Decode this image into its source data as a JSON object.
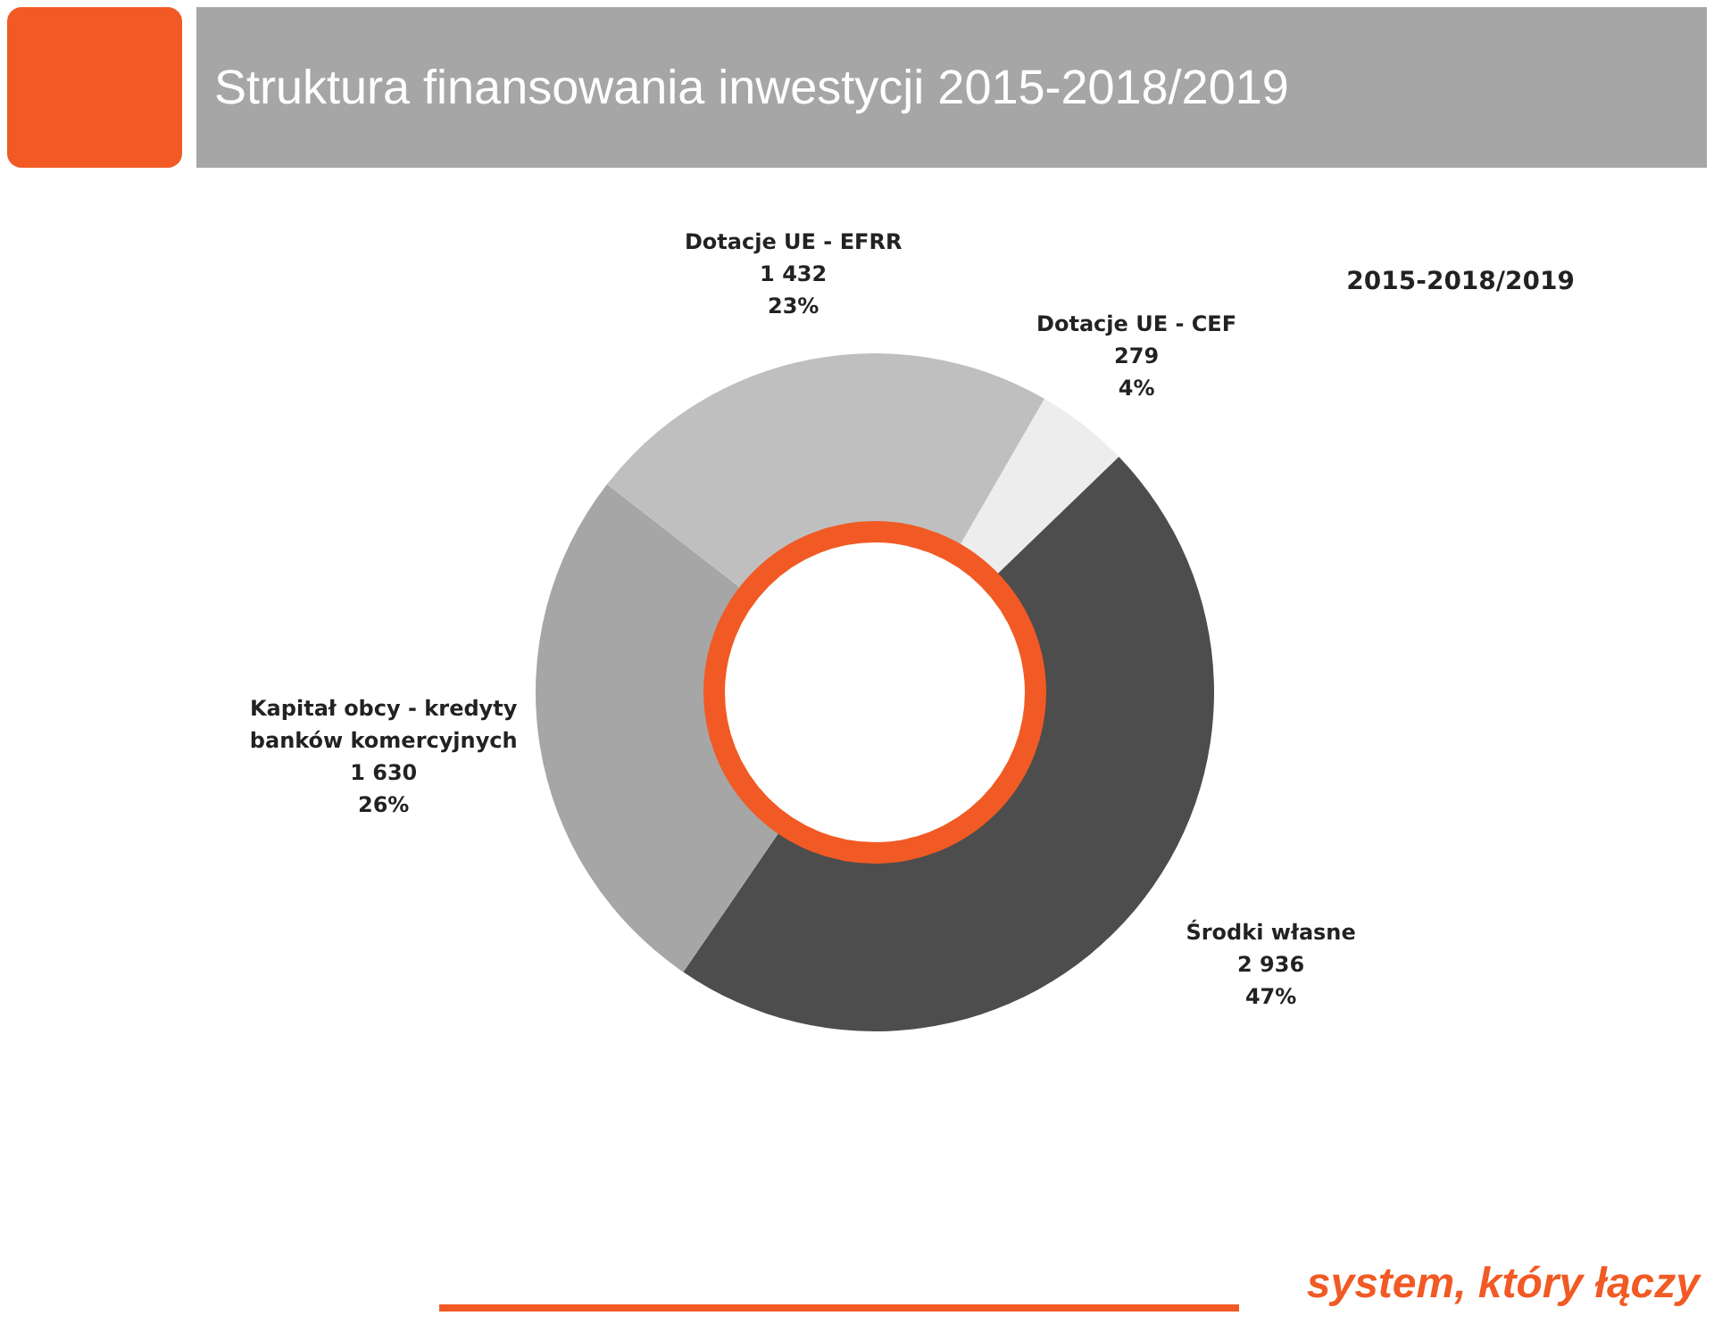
{
  "chart_data": {
    "type": "donut",
    "title": "Struktura finansowania inwestycji 2015-2018/2019",
    "subtitle": "2015-2018/2019",
    "categories": [
      "Dotacje UE - CEF",
      "Środki własne",
      "Kapitał obcy - kredyty banków komercyjnych",
      "Dotacje UE - EFRR"
    ],
    "values": [
      279,
      2936,
      1630,
      1432
    ],
    "value_labels": [
      "279\n4%",
      "2 936\n47%",
      "1 630\n26%",
      "1 432\n23%"
    ],
    "colors": [
      "#ededed",
      "#4d4d4d",
      "#a6a6a6",
      "#bfbfbf"
    ],
    "legend": false,
    "annotations": [
      "system, który łączy"
    ]
  }
}
